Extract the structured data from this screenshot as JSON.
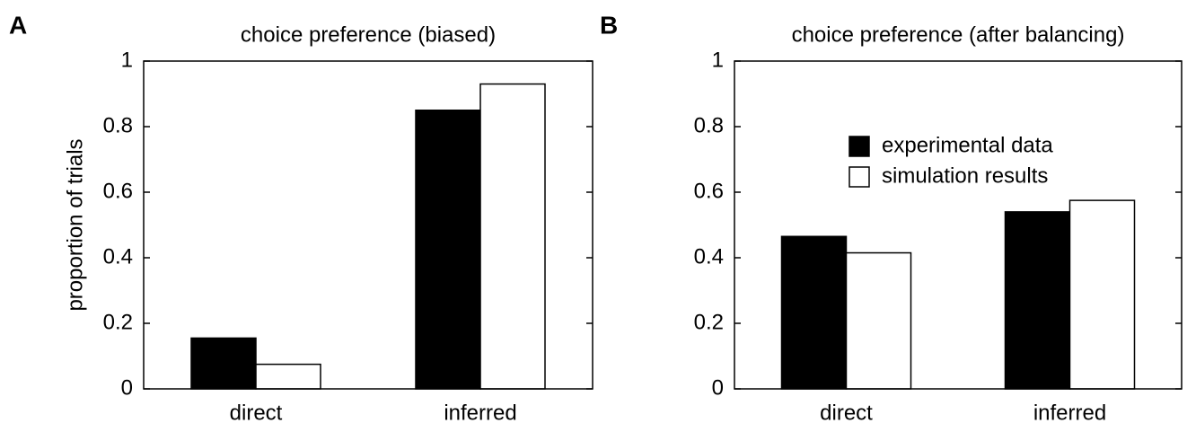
{
  "chart_data": [
    {
      "type": "bar",
      "panel_label": "A",
      "title": "choice preference (biased)",
      "ylabel": "proportion of trials",
      "categories": [
        "direct",
        "inferred"
      ],
      "series": [
        {
          "color": "#000000",
          "values": [
            0.155,
            0.85
          ]
        },
        {
          "color": "#ffffff",
          "values": [
            0.075,
            0.93
          ]
        }
      ],
      "ylim": [
        0,
        1
      ],
      "yticks": [
        0,
        0.2,
        0.4,
        0.6,
        0.8,
        1
      ]
    },
    {
      "type": "bar",
      "panel_label": "B",
      "title": "choice preference (after balancing)",
      "categories": [
        "direct",
        "inferred"
      ],
      "series": [
        {
          "name": "experimental data",
          "color": "#000000",
          "values": [
            0.465,
            0.54
          ]
        },
        {
          "name": "simulation results",
          "color": "#ffffff",
          "values": [
            0.415,
            0.575
          ]
        }
      ],
      "ylim": [
        0,
        1
      ],
      "yticks": [
        0,
        0.2,
        0.4,
        0.6,
        0.8,
        1
      ],
      "legend": "top"
    }
  ]
}
